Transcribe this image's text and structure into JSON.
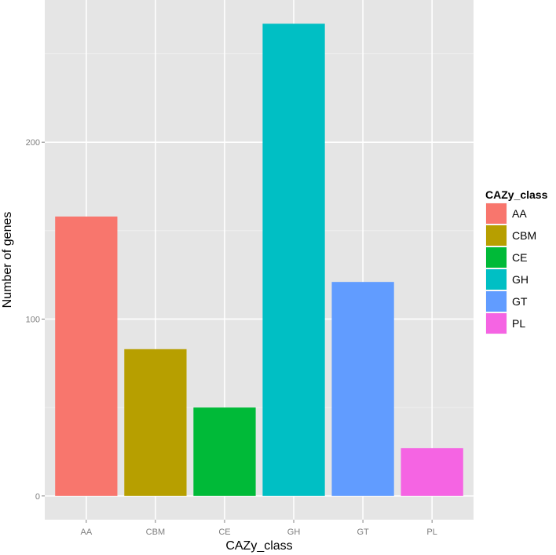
{
  "chart_data": {
    "type": "bar",
    "categories": [
      "AA",
      "CBM",
      "CE",
      "GH",
      "GT",
      "PL"
    ],
    "values": [
      158,
      83,
      50,
      267,
      121,
      27
    ],
    "colors": [
      "#F8766D",
      "#B79F00",
      "#00BA38",
      "#00BFC4",
      "#619CFF",
      "#F564E3"
    ],
    "xlabel": "CAZy_class",
    "ylabel": "Number of genes",
    "ylim": [
      -13.4,
      280.4
    ],
    "yticks": [
      0,
      100,
      200
    ],
    "grid": true,
    "legend": {
      "title": "CAZy_class",
      "placement": "right",
      "entries": [
        "AA",
        "CBM",
        "CE",
        "GH",
        "GT",
        "PL"
      ]
    }
  }
}
